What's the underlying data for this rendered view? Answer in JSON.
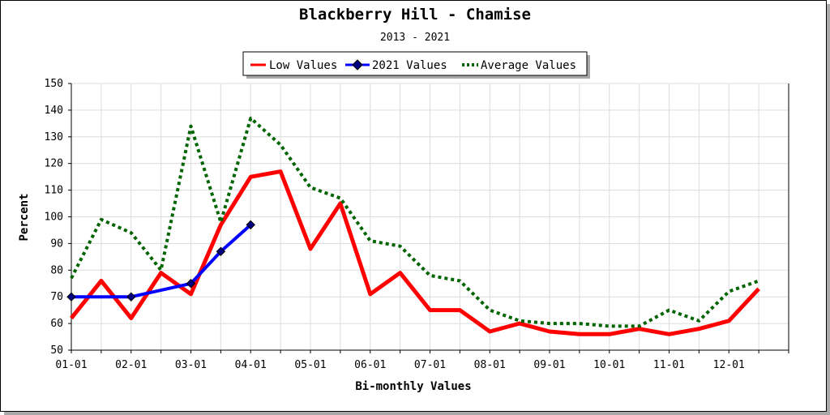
{
  "chart_data": {
    "type": "line",
    "title": "Blackberry Hill - Chamise",
    "subtitle": "2013 - 2021",
    "xlabel": "Bi-monthly Values",
    "ylabel": "Percent",
    "ylim": [
      50,
      150
    ],
    "yticks": [
      50,
      60,
      70,
      80,
      90,
      100,
      110,
      120,
      130,
      140,
      150
    ],
    "x_tick_labels": [
      "01-01",
      "02-01",
      "03-01",
      "04-01",
      "05-01",
      "06-01",
      "07-01",
      "08-01",
      "09-01",
      "10-01",
      "11-01",
      "12-01"
    ],
    "grid": true,
    "legend_position": "top-center",
    "series": [
      {
        "name": "Low Values",
        "color": "#ff0000",
        "style": "solid",
        "values": [
          62,
          76,
          62,
          79,
          71,
          97,
          115,
          117,
          88,
          105,
          71,
          79,
          65,
          65,
          57,
          60,
          57,
          56,
          56,
          58,
          56,
          58,
          61,
          73
        ]
      },
      {
        "name": "2021 Values",
        "color": "#0000ff",
        "style": "solid-markers",
        "values": [
          70,
          null,
          70,
          null,
          75,
          87,
          97
        ]
      },
      {
        "name": "Average Values",
        "color": "#006400",
        "style": "dotted",
        "values": [
          77,
          99,
          94,
          80,
          134,
          98,
          137,
          127,
          111,
          107,
          91,
          89,
          78,
          76,
          65,
          61,
          60,
          60,
          59,
          59,
          65,
          61,
          72,
          76
        ]
      }
    ]
  }
}
